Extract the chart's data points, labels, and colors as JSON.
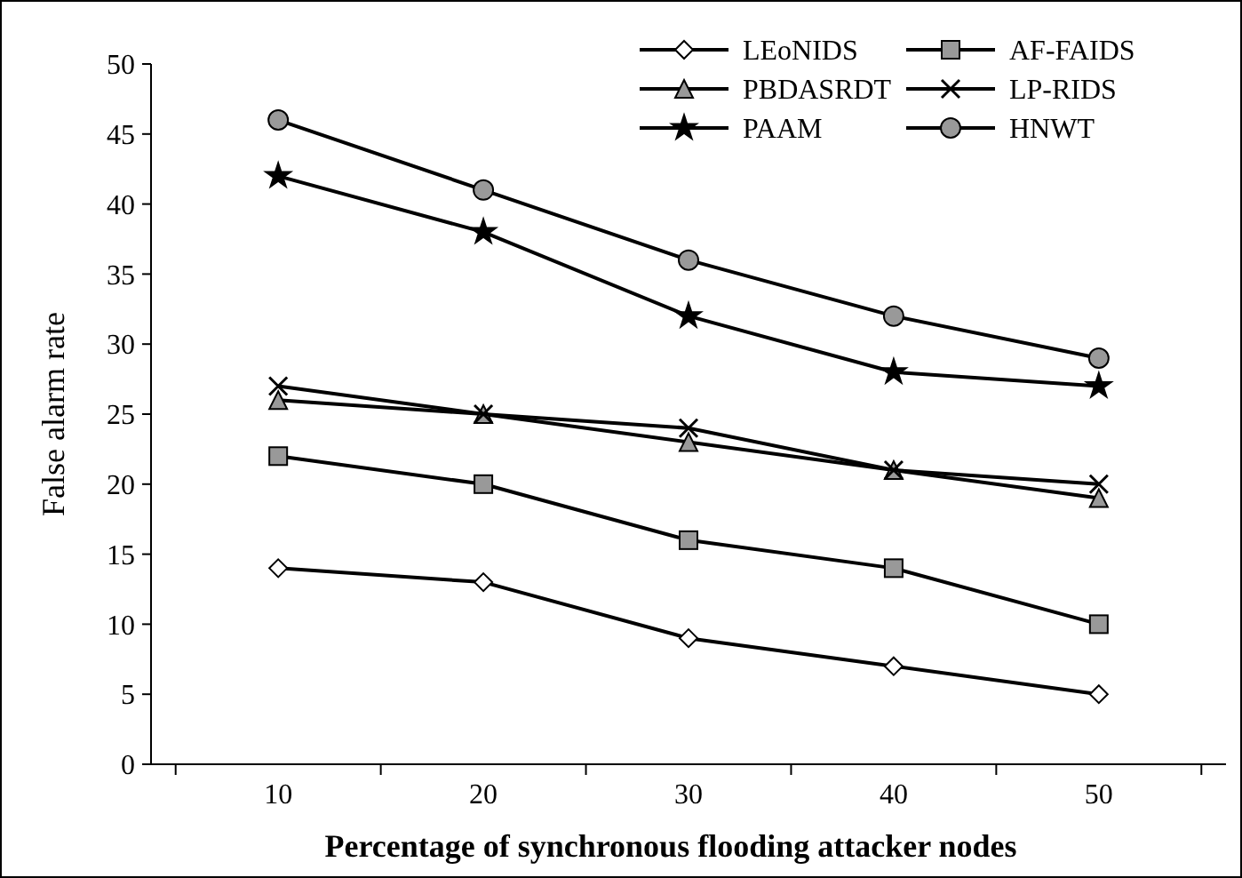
{
  "chart_data": {
    "type": "line",
    "xlabel": "Percentage of synchronous flooding attacker nodes",
    "ylabel": "False alarm rate",
    "categories": [
      "10",
      "20",
      "30",
      "40",
      "50"
    ],
    "ylim": [
      0,
      50
    ],
    "yticks": [
      0,
      5,
      10,
      15,
      20,
      25,
      30,
      35,
      40,
      45,
      50
    ],
    "grid": false,
    "legend": "top right",
    "series": [
      {
        "name": "LEoNIDS",
        "color": "#000000",
        "marker": "diamond",
        "values": [
          14,
          13,
          9,
          7,
          5
        ]
      },
      {
        "name": "AF-FAIDS",
        "color": "#000000",
        "marker": "square",
        "values": [
          22,
          20,
          16,
          14,
          10
        ]
      },
      {
        "name": "PBDASRDT",
        "color": "#000000",
        "marker": "triangle",
        "values": [
          26,
          25,
          23,
          21,
          19
        ]
      },
      {
        "name": "LP-RIDS",
        "color": "#000000",
        "marker": "cross",
        "values": [
          27,
          25,
          24,
          21,
          20
        ]
      },
      {
        "name": "PAAM",
        "color": "#000000",
        "marker": "star",
        "values": [
          42,
          38,
          32,
          28,
          27
        ]
      },
      {
        "name": "HNWT",
        "color": "#000000",
        "marker": "circle",
        "values": [
          46,
          41,
          36,
          32,
          29
        ]
      }
    ]
  }
}
